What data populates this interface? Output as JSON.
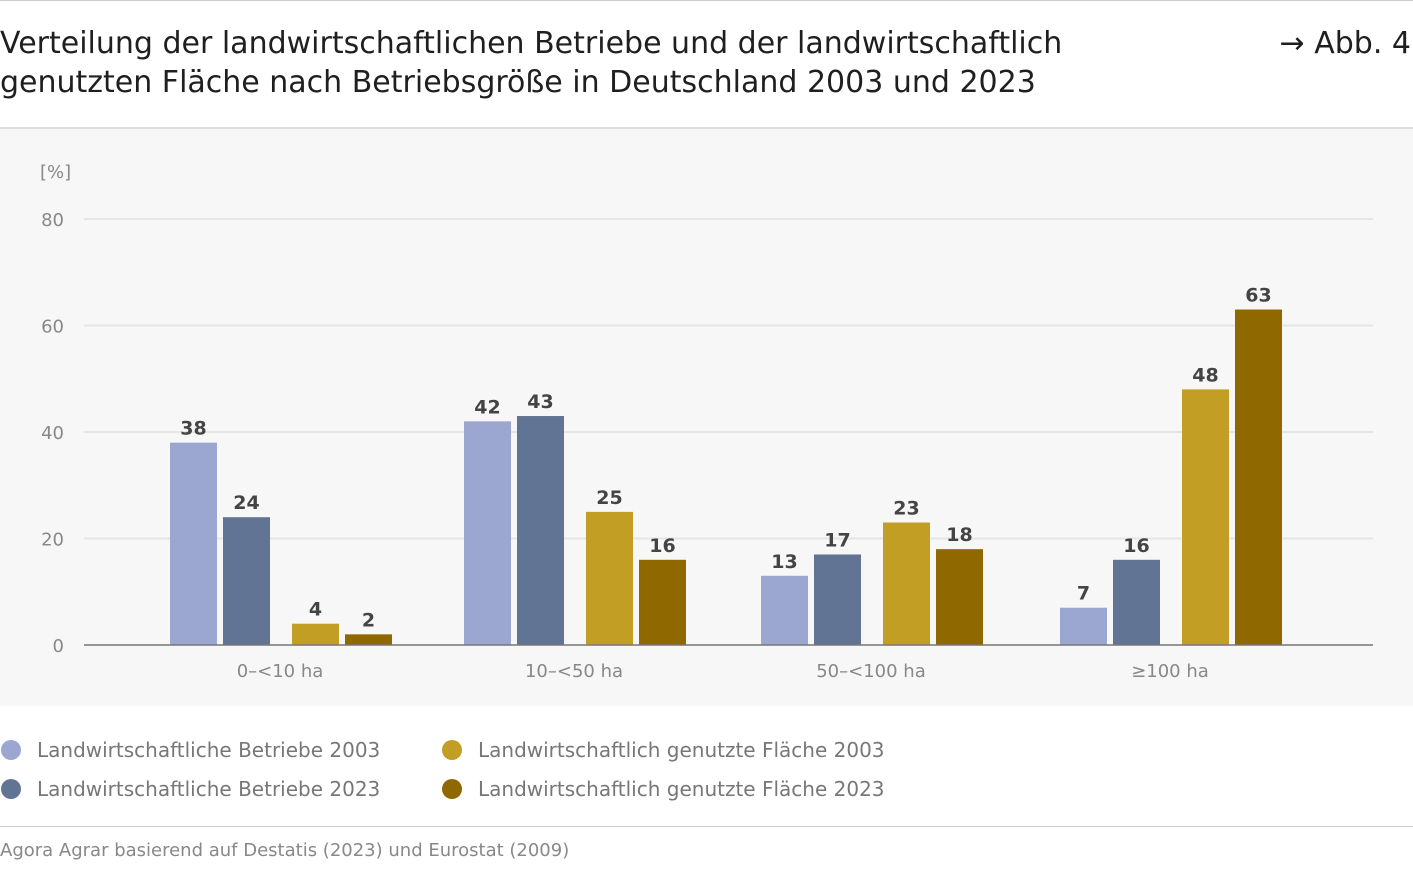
{
  "header": {
    "title": "Verteilung der landwirtschaftlichen Betriebe und der landwirtschaftlich genutzten Fläche nach Betriebsgröße in Deutschland 2003 und 2023",
    "figure_ref": "→ Abb. 4"
  },
  "chart_data": {
    "type": "bar",
    "ylabel": "[%]",
    "ylim": [
      0,
      80
    ],
    "yticks": [
      0,
      20,
      40,
      60,
      80
    ],
    "grid": true,
    "categories": [
      "0–<10 ha",
      "10–<50 ha",
      "50–<100 ha",
      "≥100 ha"
    ],
    "series": [
      {
        "name": "Landwirtschaftliche Betriebe 2003",
        "color": "#9ca7d1",
        "values": [
          38,
          42,
          13,
          7
        ]
      },
      {
        "name": "Landwirtschaftliche Betriebe 2023",
        "color": "#627493",
        "values": [
          24,
          43,
          17,
          16
        ]
      },
      {
        "name": "Landwirtschaftlich genutzte Fläche 2003",
        "color": "#c29e25",
        "values": [
          4,
          25,
          23,
          48
        ]
      },
      {
        "name": "Landwirtschaftlich genutzte Fläche 2023",
        "color": "#8f6900",
        "values": [
          2,
          16,
          18,
          63
        ]
      }
    ],
    "legend_position": "bottom"
  },
  "footer": {
    "source": "Agora Agrar basierend auf Destatis (2023) und Eurostat (2009)"
  }
}
